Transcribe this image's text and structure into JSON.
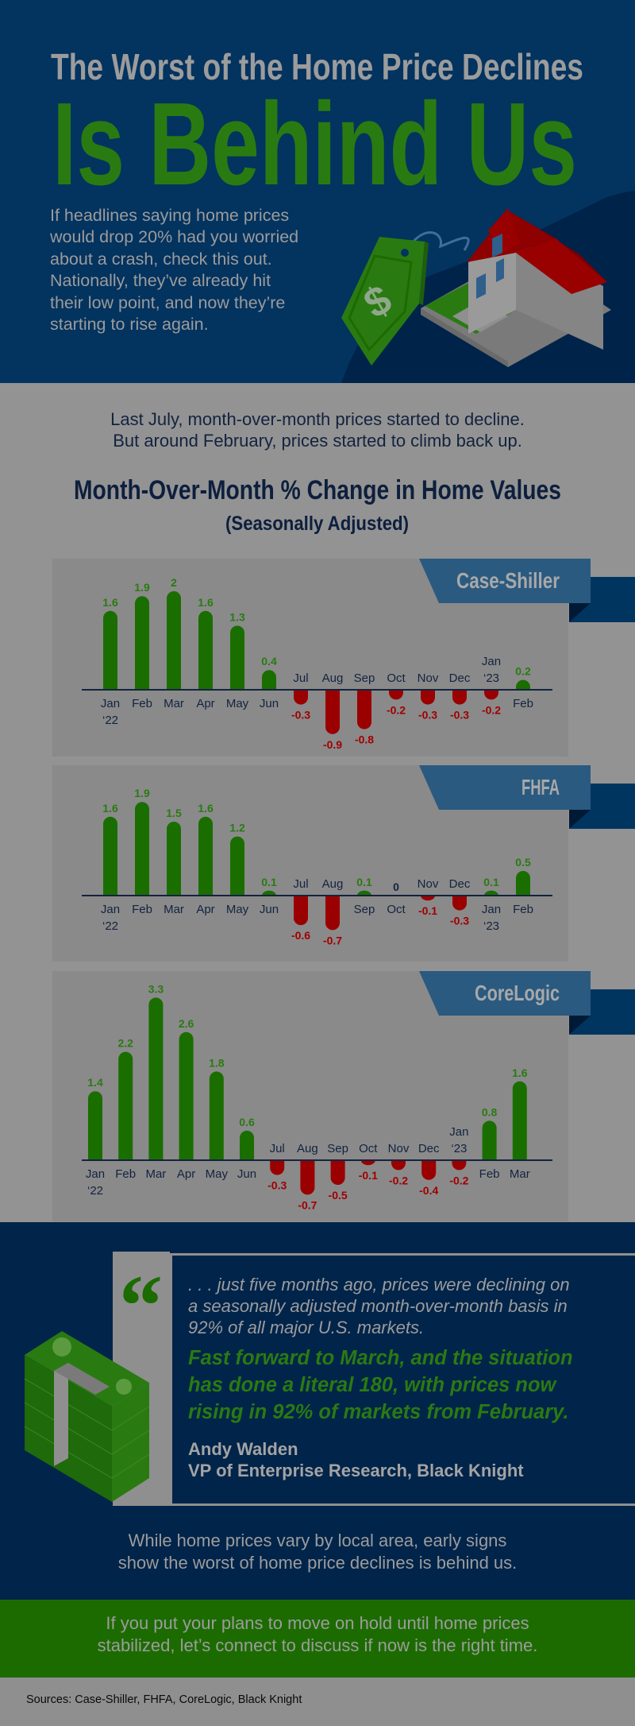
{
  "colors": {
    "header_bg": "#03335f",
    "navy_dark": "#00244a",
    "title_gray": "#9c9c9c",
    "title_green": "#2a7a12",
    "bar_positive": "#1a6e00",
    "bar_negative": "#9b0000",
    "label_positive": "#2a7a12",
    "label_negative": "#a00000",
    "label_zero": "#13233f",
    "axis": "#13233f",
    "tag_bg": "#2a5a80",
    "ribbon": "#003560",
    "ribbon_shadow": "#001a35",
    "cta_bg": "#1c6b00"
  },
  "header": {
    "title_line1": "The Worst of the Home Price Declines",
    "title_line2": "Is Behind Us",
    "intro_lines": [
      "If headlines saying home prices",
      "would drop 20% had you worried",
      "about a crash, check this out.",
      "Nationally, they’ve already hit",
      "their low point, and now they’re",
      "starting to rise again."
    ],
    "illustration": [
      "price-tag-icon",
      "house-icon"
    ]
  },
  "lead": {
    "lines": [
      "Last July, month-over-month prices started to decline.",
      "But around February, prices started to climb back up."
    ],
    "chart_title": "Month-Over-Month % Change in Home Values",
    "chart_subtitle": "(Seasonally Adjusted)"
  },
  "chart_data": [
    {
      "type": "bar",
      "title": "Case-Shiller",
      "categories": [
        "Jan ‘22",
        "Feb",
        "Mar",
        "Apr",
        "May",
        "Jun",
        "Jul",
        "Aug",
        "Sep",
        "Oct",
        "Nov",
        "Dec",
        "Jan ‘23",
        "Feb"
      ],
      "values": [
        1.6,
        1.9,
        2,
        1.6,
        1.3,
        0.4,
        -0.3,
        -0.9,
        -0.8,
        -0.2,
        -0.3,
        -0.3,
        -0.2,
        0.2
      ],
      "value_labels": [
        "1.6",
        "1.9",
        "2",
        "1.6",
        "1.3",
        "0.4",
        "-0.3",
        "-0.9",
        "-0.8",
        "-0.2",
        "-0.3",
        "-0.3",
        "-0.2",
        "0.2"
      ],
      "grid": false
    },
    {
      "type": "bar",
      "title": "FHFA",
      "categories": [
        "Jan ‘22",
        "Feb",
        "Mar",
        "Apr",
        "May",
        "Jun",
        "Jul",
        "Aug",
        "Sep",
        "Oct",
        "Nov",
        "Dec",
        "Jan ‘23",
        "Feb"
      ],
      "values": [
        1.6,
        1.9,
        1.5,
        1.6,
        1.2,
        0.1,
        -0.6,
        -0.7,
        0.1,
        0,
        -0.1,
        -0.3,
        0.1,
        0.5
      ],
      "value_labels": [
        "1.6",
        "1.9",
        "1.5",
        "1.6",
        "1.2",
        "0.1",
        "-0.6",
        "-0.7",
        "0.1",
        "0",
        "-0.1",
        "-0.3",
        "0.1",
        "0.5"
      ],
      "grid": false
    },
    {
      "type": "bar",
      "title": "CoreLogic",
      "categories": [
        "Jan ‘22",
        "Feb",
        "Mar",
        "Apr",
        "May",
        "Jun",
        "Jul",
        "Aug",
        "Sep",
        "Oct",
        "Nov",
        "Dec",
        "Jan ‘23",
        "Feb",
        "Mar"
      ],
      "values": [
        1.4,
        2.2,
        3.3,
        2.6,
        1.8,
        0.6,
        -0.3,
        -0.7,
        -0.5,
        -0.1,
        -0.2,
        -0.4,
        -0.2,
        0.8,
        1.6
      ],
      "value_labels": [
        "1.4",
        "2.2",
        "3.3",
        "2.6",
        "1.8",
        "0.6",
        "-0.3",
        "-0.7",
        "-0.5",
        "-0.1",
        "-0.2",
        "-0.4",
        "-0.2",
        "0.8",
        "1.6"
      ],
      "grid": false
    }
  ],
  "quote": {
    "mark": "“",
    "italic_lines": [
      ". . . just five months ago, prices were declining on",
      "a seasonally adjusted month-over-month basis in",
      "92% of all major U.S. markets."
    ],
    "highlight_lines": [
      "Fast forward to March, and the situation",
      "has done a literal 180, with prices now",
      "rising in 92% of markets from February."
    ],
    "author": "Andy Walden",
    "author_title": "VP of Enterprise Research, Black Knight",
    "illustration": "money-stack-icon"
  },
  "closing": {
    "lines": [
      "While home prices vary by local area, early signs",
      "show the worst of home price declines is behind us."
    ]
  },
  "cta": {
    "lines": [
      "If you put your plans to move on hold until home prices",
      "stabilized, let’s connect to discuss if now is the right time."
    ]
  },
  "sources": "Sources: Case-Shiller, FHFA, CoreLogic, Black Knight"
}
